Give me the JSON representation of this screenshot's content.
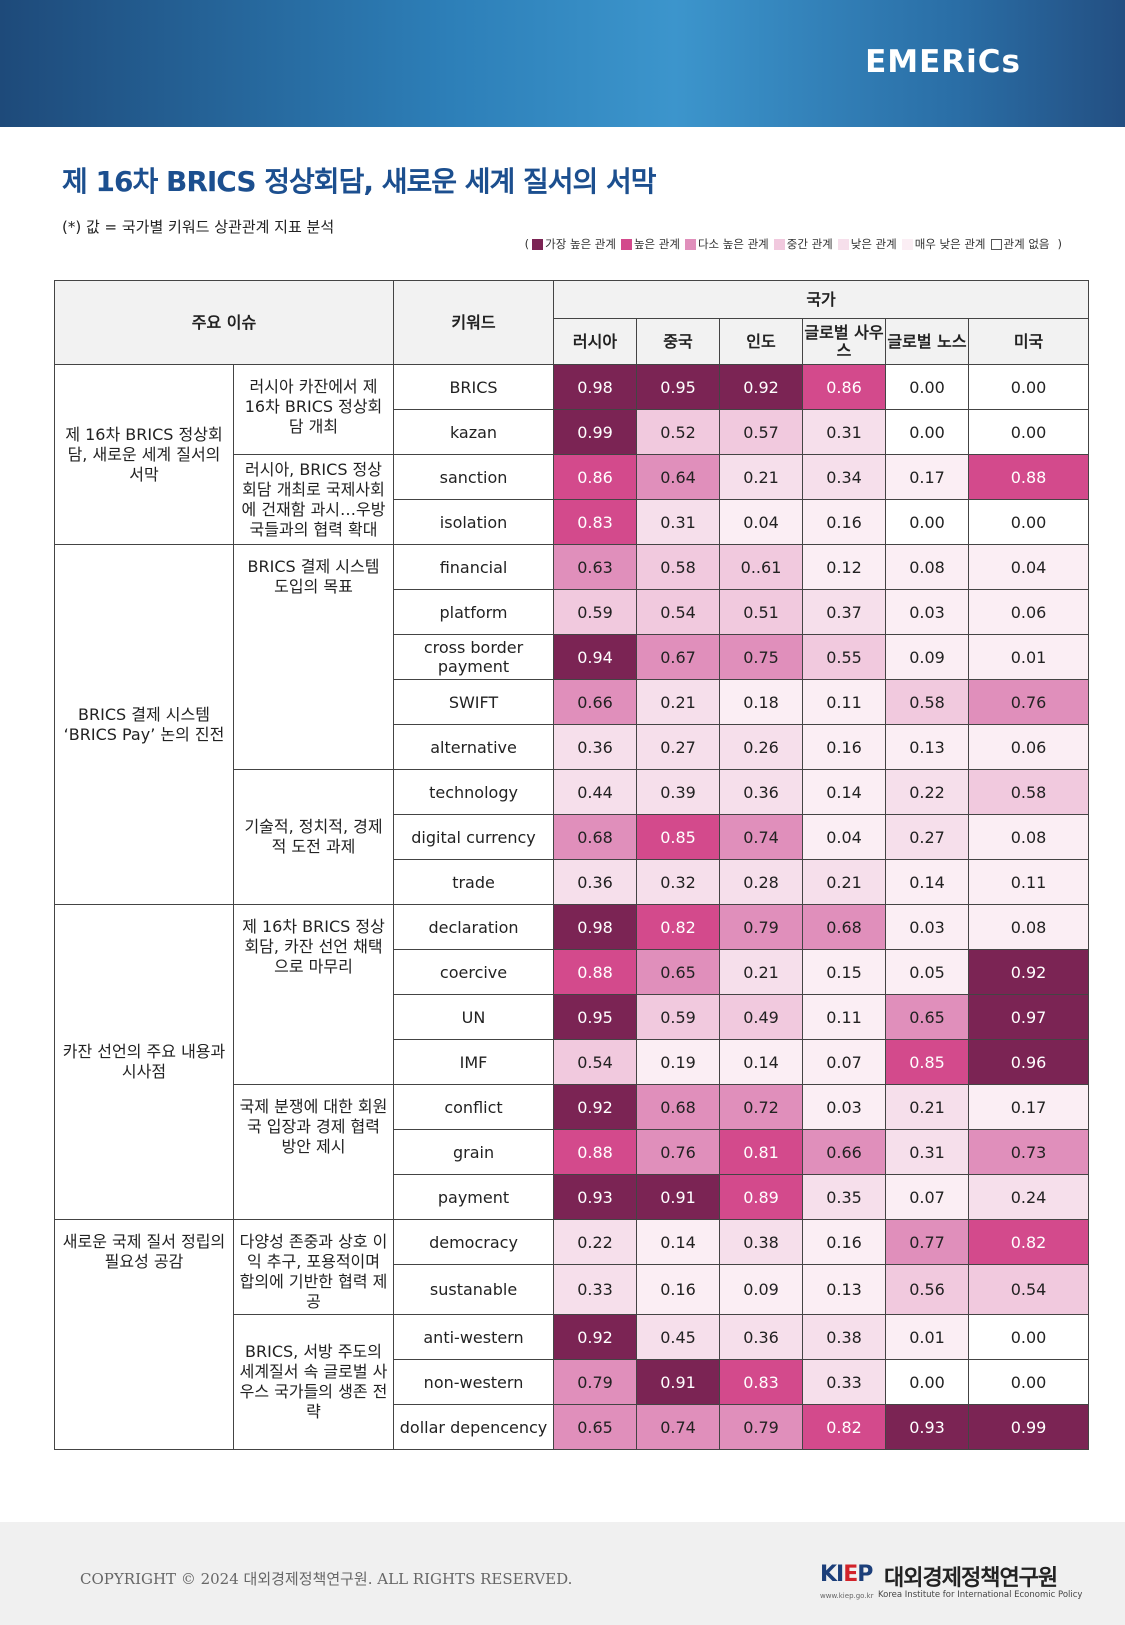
{
  "header": {
    "brand": "EMERiCs",
    "banner_color": "#2d7fb8"
  },
  "title": "제 16차 BRICS 정상회담, 새로운 세계 질서의 서막",
  "subtitle": "(*) 값 = 국가별 키워드 상관관계 지표 분석",
  "legend": {
    "open": "(",
    "close": ")",
    "items": [
      {
        "label": "가장 높은 관계",
        "color": "#7b2454"
      },
      {
        "label": "높은 관계",
        "color": "#d34a8c"
      },
      {
        "label": "다소 높은 관계",
        "color": "#e08fbb"
      },
      {
        "label": "중간 관계",
        "color": "#f1c9de"
      },
      {
        "label": "낮은 관계",
        "color": "#f6dfeb"
      },
      {
        "label": "매우 낮은 관계",
        "color": "#fbeef4"
      },
      {
        "label": "관계 없음",
        "color": "#ffffff"
      }
    ]
  },
  "table": {
    "headers": {
      "issue": "주요 이슈",
      "keyword": "키워드",
      "country_group": "국가",
      "countries": [
        "러시아",
        "중국",
        "인도",
        "글로벌 사우스",
        "글로벌 노스",
        "미국"
      ]
    },
    "rows": [
      {
        "issue": "제 16차 BRICS 정상회담, 새로운 세계 질서의 서막",
        "sub": "러시아 카잔에서 제 16차 BRICS 정상회담 개최",
        "keyword": "BRICS",
        "values": [
          "0.98",
          "0.95",
          "0.92",
          "0.86",
          "0.00",
          "0.00"
        ],
        "levels": [
          6,
          6,
          6,
          5,
          0,
          0
        ]
      },
      {
        "keyword": "kazan",
        "values": [
          "0.99",
          "0.52",
          "0.57",
          "0.31",
          "0.00",
          "0.00"
        ],
        "levels": [
          6,
          3,
          3,
          2,
          0,
          0
        ]
      },
      {
        "sub": "러시아, BRICS 정상회담 개최로 국제사회에 건재함 과시…우방국들과의 협력 확대",
        "keyword": "sanction",
        "values": [
          "0.86",
          "0.64",
          "0.21",
          "0.34",
          "0.17",
          "0.88"
        ],
        "levels": [
          5,
          4,
          2,
          2,
          1,
          5
        ]
      },
      {
        "keyword": "isolation",
        "values": [
          "0.83",
          "0.31",
          "0.04",
          "0.16",
          "0.00",
          "0.00"
        ],
        "levels": [
          5,
          2,
          1,
          1,
          0,
          0
        ]
      },
      {
        "issue": "BRICS 결제 시스템 ‘BRICS Pay’ 논의 진전",
        "sub": "BRICS 결제 시스템 도입의 목표",
        "keyword": "financial",
        "values": [
          "0.63",
          "0.58",
          "0..61",
          "0.12",
          "0.08",
          "0.04"
        ],
        "levels": [
          4,
          3,
          3,
          1,
          1,
          1
        ]
      },
      {
        "keyword": "platform",
        "values": [
          "0.59",
          "0.54",
          "0.51",
          "0.37",
          "0.03",
          "0.06"
        ],
        "levels": [
          3,
          3,
          3,
          2,
          1,
          1
        ]
      },
      {
        "keyword": "cross border payment",
        "values": [
          "0.94",
          "0.67",
          "0.75",
          "0.55",
          "0.09",
          "0.01"
        ],
        "levels": [
          6,
          4,
          4,
          3,
          1,
          1
        ]
      },
      {
        "keyword": "SWIFT",
        "values": [
          "0.66",
          "0.21",
          "0.18",
          "0.11",
          "0.58",
          "0.76"
        ],
        "levels": [
          4,
          2,
          1,
          1,
          3,
          4
        ]
      },
      {
        "keyword": "alternative",
        "values": [
          "0.36",
          "0.27",
          "0.26",
          "0.16",
          "0.13",
          "0.06"
        ],
        "levels": [
          2,
          2,
          2,
          1,
          1,
          1
        ]
      },
      {
        "sub": "기술적, 정치적, 경제적 도전 과제",
        "keyword": "technology",
        "values": [
          "0.44",
          "0.39",
          "0.36",
          "0.14",
          "0.22",
          "0.58"
        ],
        "levels": [
          2,
          2,
          2,
          1,
          2,
          3
        ]
      },
      {
        "keyword": "digital currency",
        "values": [
          "0.68",
          "0.85",
          "0.74",
          "0.04",
          "0.27",
          "0.08"
        ],
        "levels": [
          4,
          5,
          4,
          1,
          2,
          1
        ]
      },
      {
        "keyword": "trade",
        "values": [
          "0.36",
          "0.32",
          "0.28",
          "0.21",
          "0.14",
          "0.11"
        ],
        "levels": [
          2,
          2,
          2,
          2,
          1,
          1
        ]
      },
      {
        "issue": "카잔 선언의 주요 내용과 시사점",
        "sub": "제 16차 BRICS 정상회담, 카잔 선언 채택으로 마무리",
        "keyword": "declaration",
        "values": [
          "0.98",
          "0.82",
          "0.79",
          "0.68",
          "0.03",
          "0.08"
        ],
        "levels": [
          6,
          5,
          4,
          4,
          1,
          1
        ]
      },
      {
        "keyword": "coercive",
        "values": [
          "0.88",
          "0.65",
          "0.21",
          "0.15",
          "0.05",
          "0.92"
        ],
        "levels": [
          5,
          4,
          2,
          1,
          1,
          6
        ]
      },
      {
        "keyword": "UN",
        "values": [
          "0.95",
          "0.59",
          "0.49",
          "0.11",
          "0.65",
          "0.97"
        ],
        "levels": [
          6,
          3,
          3,
          1,
          4,
          6
        ]
      },
      {
        "keyword": "IMF",
        "values": [
          "0.54",
          "0.19",
          "0.14",
          "0.07",
          "0.85",
          "0.96"
        ],
        "levels": [
          3,
          1,
          1,
          1,
          5,
          6
        ]
      },
      {
        "sub": "국제 분쟁에 대한 회원국 입장과 경제 협력 방안 제시",
        "keyword": "conflict",
        "values": [
          "0.92",
          "0.68",
          "0.72",
          "0.03",
          "0.21",
          "0.17"
        ],
        "levels": [
          6,
          4,
          4,
          1,
          2,
          1
        ]
      },
      {
        "keyword": "grain",
        "values": [
          "0.88",
          "0.76",
          "0.81",
          "0.66",
          "0.31",
          "0.73"
        ],
        "levels": [
          5,
          4,
          5,
          4,
          2,
          4
        ]
      },
      {
        "keyword": "payment",
        "values": [
          "0.93",
          "0.91",
          "0.89",
          "0.35",
          "0.07",
          "0.24"
        ],
        "levels": [
          6,
          6,
          5,
          2,
          1,
          2
        ]
      },
      {
        "issue": "새로운 국제 질서 정립의 필요성 공감",
        "sub": "다양성 존중과 상호 이익 추구, 포용적이며 합의에 기반한 협력 제공",
        "keyword": "democracy",
        "values": [
          "0.22",
          "0.14",
          "0.38",
          "0.16",
          "0.77",
          "0.82"
        ],
        "levels": [
          2,
          1,
          2,
          1,
          4,
          5
        ]
      },
      {
        "keyword": "sustanable",
        "values": [
          "0.33",
          "0.16",
          "0.09",
          "0.13",
          "0.56",
          "0.54"
        ],
        "levels": [
          2,
          1,
          1,
          1,
          3,
          3
        ]
      },
      {
        "sub": "BRICS, 서방 주도의 세계질서 속 글로벌 사우스 국가들의 생존 전략",
        "keyword": "anti-western",
        "values": [
          "0.92",
          "0.45",
          "0.36",
          "0.38",
          "0.01",
          "0.00"
        ],
        "levels": [
          6,
          2,
          2,
          2,
          1,
          0
        ]
      },
      {
        "keyword": "non-western",
        "values": [
          "0.79",
          "0.91",
          "0.83",
          "0.33",
          "0.00",
          "0.00"
        ],
        "levels": [
          4,
          6,
          5,
          2,
          0,
          0
        ]
      },
      {
        "keyword": "dollar depencency",
        "values": [
          "0.65",
          "0.74",
          "0.79",
          "0.82",
          "0.93",
          "0.99"
        ],
        "levels": [
          4,
          4,
          4,
          5,
          6,
          6
        ]
      }
    ],
    "level_colors": [
      "#ffffff",
      "#fbeef4",
      "#f6dfeb",
      "#f1c9de",
      "#e08fbb",
      "#d34a8c",
      "#7b2454"
    ]
  },
  "footer": {
    "copyright": "COPYRIGHT © 2024 대외경제정책연구원.  ALL RIGHTS RESERVED.",
    "logo_ki": "KI",
    "logo_e": "E",
    "logo_p": "P",
    "org_korean": "대외경제정책연구원",
    "org_url": "www.kiep.go.kr",
    "org_english": "Korea Institute for International Economic Policy"
  }
}
